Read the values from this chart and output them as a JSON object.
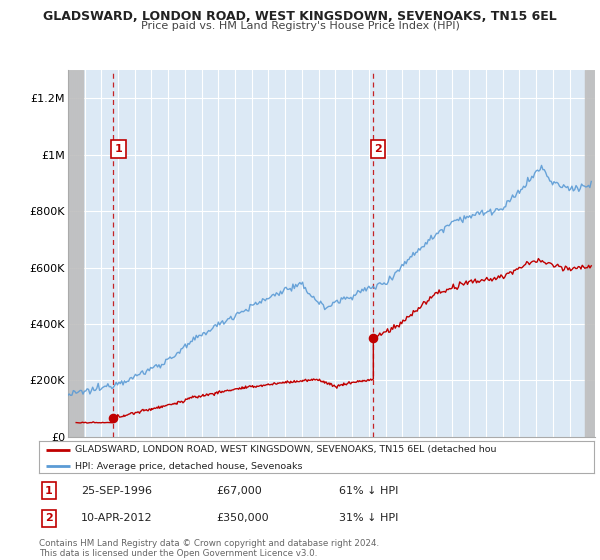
{
  "title": "GLADSWARD, LONDON ROAD, WEST KINGSDOWN, SEVENOAKS, TN15 6EL",
  "subtitle": "Price paid vs. HM Land Registry's House Price Index (HPI)",
  "ylim": [
    0,
    1300000
  ],
  "yticks": [
    0,
    200000,
    400000,
    600000,
    800000,
    1000000,
    1200000
  ],
  "ytick_labels": [
    "£0",
    "£200K",
    "£400K",
    "£600K",
    "£800K",
    "£1M",
    "£1.2M"
  ],
  "sale1_date": 1996.73,
  "sale1_price": 67000,
  "sale2_date": 2012.27,
  "sale2_price": 350000,
  "hpi_color": "#5b9bd5",
  "sale_color": "#c00000",
  "plot_bg_color": "#dce9f5",
  "hatch_color": "#c8c8c8",
  "legend_label_red": "GLADSWARD, LONDON ROAD, WEST KINGSDOWN, SEVENOAKS, TN15 6EL (detached hou",
  "legend_label_blue": "HPI: Average price, detached house, Sevenoaks",
  "table_row1": [
    "1",
    "25-SEP-1996",
    "£67,000",
    "61% ↓ HPI"
  ],
  "table_row2": [
    "2",
    "10-APR-2012",
    "£350,000",
    "31% ↓ HPI"
  ],
  "footnote": "Contains HM Land Registry data © Crown copyright and database right 2024.\nThis data is licensed under the Open Government Licence v3.0.",
  "xmin": 1994,
  "xmax": 2025.5
}
